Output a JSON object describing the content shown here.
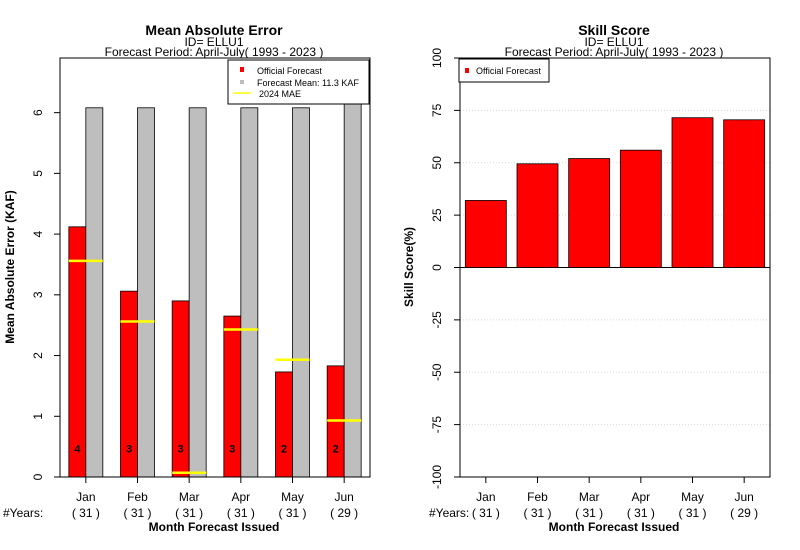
{
  "chart_data": [
    {
      "type": "bar",
      "title": "Mean Absolute Error",
      "subtitle_1": "ID= ELLU1",
      "subtitle_2": "Forecast Period: April-July( 1993 - 2023 )",
      "ylabel": "Mean Absolute Error (KAF)",
      "xlabel": "Month Forecast Issued",
      "years_label": "#Years:",
      "categories": [
        "Jan",
        "Feb",
        "Mar",
        "Apr",
        "May",
        "Jun"
      ],
      "years": [
        "( 31 )",
        "( 31 )",
        "( 31 )",
        "( 31 )",
        "( 31 )",
        "( 29 )"
      ],
      "ylim": [
        0,
        6.9
      ],
      "yticks": [
        0,
        1,
        2,
        3,
        4,
        5,
        6
      ],
      "series": [
        {
          "name": "Official Forecast",
          "color": "#ff0000",
          "values": [
            4.12,
            3.06,
            2.9,
            2.65,
            1.73,
            1.83
          ]
        },
        {
          "name": "Forecast Mean: 11.3 KAF",
          "color": "#bebebe",
          "values": [
            6.08,
            6.08,
            6.08,
            6.08,
            6.08,
            6.15
          ]
        }
      ],
      "mae_2024": {
        "name": "2024  MAE",
        "color": "#ffff00",
        "values": [
          3.56,
          2.56,
          0.07,
          2.43,
          1.93,
          0.93
        ]
      },
      "ranks": [
        "4",
        "3",
        "3",
        "3",
        "2",
        "2"
      ],
      "legend_position": "top-right"
    },
    {
      "type": "bar",
      "title": "Skill Score",
      "subtitle_1": "ID= ELLU1",
      "subtitle_2": "Forecast Period: April-July( 1993 - 2023 )",
      "ylabel": "Skill Score(%)",
      "xlabel": "Month Forecast Issued",
      "years_label": "#Years:",
      "categories": [
        "Jan",
        "Feb",
        "Mar",
        "Apr",
        "May",
        "Jun"
      ],
      "years": [
        "( 31 )",
        "( 31 )",
        "( 31 )",
        "( 31 )",
        "( 31 )",
        "( 29 )"
      ],
      "ylim": [
        -100,
        100
      ],
      "yticks": [
        -100,
        -75,
        -50,
        -25,
        0,
        25,
        50,
        75,
        100
      ],
      "ytick_labels": [
        "-100",
        "-75",
        "-50",
        "-25",
        "0",
        "25",
        "50",
        "75",
        "100"
      ],
      "series": [
        {
          "name": "Official Forecast",
          "color": "#ff0000",
          "values": [
            32,
            49.5,
            52,
            56,
            71.5,
            70.5
          ]
        }
      ],
      "grid": true,
      "legend_position": "top-left"
    }
  ]
}
